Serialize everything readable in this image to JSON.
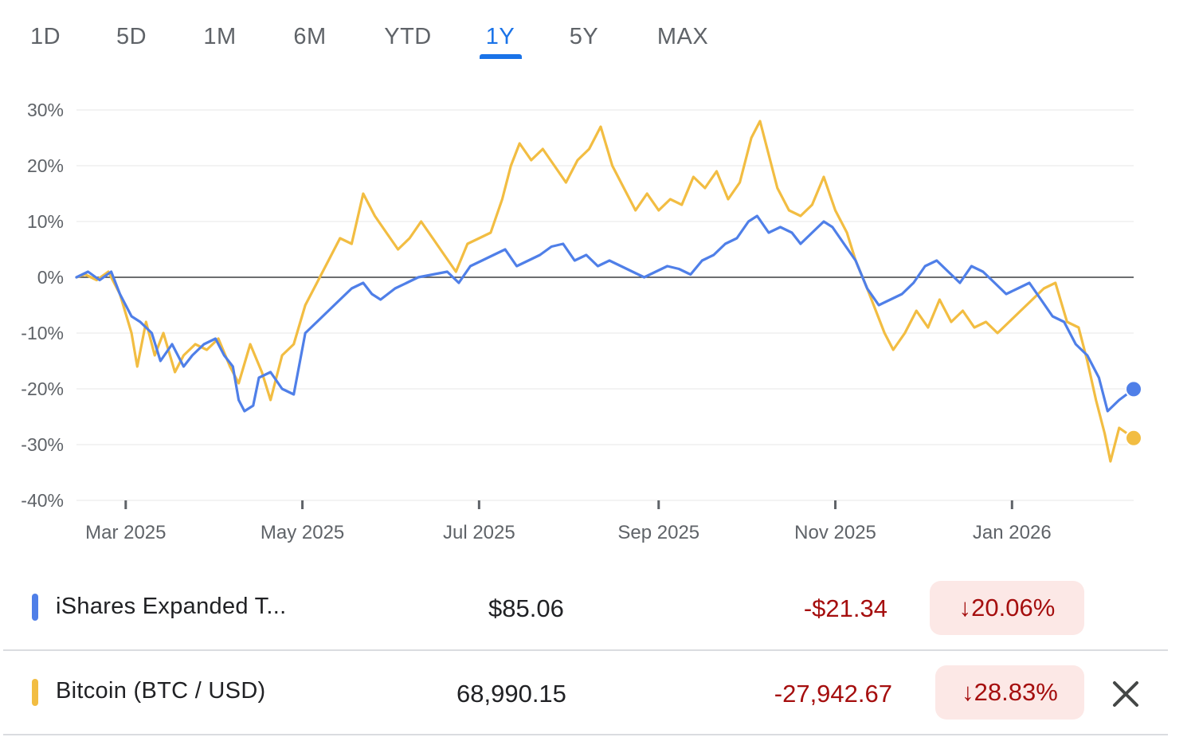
{
  "range_tabs": {
    "items": [
      "1D",
      "5D",
      "1M",
      "6M",
      "YTD",
      "1Y",
      "5Y",
      "MAX"
    ],
    "selected": "1Y"
  },
  "colors": {
    "series_blue": "#4f7fe8",
    "series_gold": "#f2bd42",
    "accent": "#1a73e8",
    "negative": "#a50e0e",
    "negative_bg": "#fce8e6"
  },
  "chart_data": {
    "type": "line",
    "title": "",
    "xlabel": "",
    "ylabel": "",
    "y_unit": "%",
    "ylim": [
      -40,
      30
    ],
    "yticks": [
      "30%",
      "20%",
      "10%",
      "0%",
      "-10%",
      "-20%",
      "-30%",
      "-40%"
    ],
    "xlim": [
      "2025-02-12",
      "2026-02-12"
    ],
    "xticks": [
      {
        "label": "Mar 2025",
        "date": "2025-03-01"
      },
      {
        "label": "May 2025",
        "date": "2025-05-01"
      },
      {
        "label": "Jul 2025",
        "date": "2025-07-01"
      },
      {
        "label": "Sep 2025",
        "date": "2025-09-01"
      },
      {
        "label": "Nov 2025",
        "date": "2025-11-01"
      },
      {
        "label": "Jan 2026",
        "date": "2026-01-01"
      }
    ],
    "baseline": 0,
    "grid": true,
    "series": [
      {
        "name": "iShares Expanded T...",
        "color_key": "series_blue",
        "points": [
          [
            "2025-02-12",
            0
          ],
          [
            "2025-02-16",
            1
          ],
          [
            "2025-02-20",
            -0.5
          ],
          [
            "2025-02-24",
            1
          ],
          [
            "2025-02-27",
            -3
          ],
          [
            "2025-03-03",
            -7
          ],
          [
            "2025-03-06",
            -8
          ],
          [
            "2025-03-10",
            -10
          ],
          [
            "2025-03-13",
            -15
          ],
          [
            "2025-03-17",
            -12
          ],
          [
            "2025-03-21",
            -16
          ],
          [
            "2025-03-24",
            -14
          ],
          [
            "2025-03-28",
            -12
          ],
          [
            "2025-04-01",
            -11
          ],
          [
            "2025-04-04",
            -14
          ],
          [
            "2025-04-07",
            -16
          ],
          [
            "2025-04-09",
            -22
          ],
          [
            "2025-04-11",
            -24
          ],
          [
            "2025-04-14",
            -23
          ],
          [
            "2025-04-16",
            -18
          ],
          [
            "2025-04-20",
            -17
          ],
          [
            "2025-04-24",
            -20
          ],
          [
            "2025-04-28",
            -21
          ],
          [
            "2025-05-02",
            -10
          ],
          [
            "2025-05-06",
            -8
          ],
          [
            "2025-05-10",
            -6
          ],
          [
            "2025-05-14",
            -4
          ],
          [
            "2025-05-18",
            -2
          ],
          [
            "2025-05-22",
            -1
          ],
          [
            "2025-05-25",
            -3
          ],
          [
            "2025-05-28",
            -4
          ],
          [
            "2025-06-02",
            -2
          ],
          [
            "2025-06-06",
            -1
          ],
          [
            "2025-06-10",
            0
          ],
          [
            "2025-06-15",
            0.5
          ],
          [
            "2025-06-20",
            1
          ],
          [
            "2025-06-24",
            -1
          ],
          [
            "2025-06-28",
            2
          ],
          [
            "2025-07-02",
            3
          ],
          [
            "2025-07-06",
            4
          ],
          [
            "2025-07-10",
            5
          ],
          [
            "2025-07-14",
            2
          ],
          [
            "2025-07-18",
            3
          ],
          [
            "2025-07-22",
            4
          ],
          [
            "2025-07-26",
            5.5
          ],
          [
            "2025-07-30",
            6
          ],
          [
            "2025-08-03",
            3
          ],
          [
            "2025-08-07",
            4
          ],
          [
            "2025-08-11",
            2
          ],
          [
            "2025-08-15",
            3
          ],
          [
            "2025-08-19",
            2
          ],
          [
            "2025-08-23",
            1
          ],
          [
            "2025-08-27",
            0
          ],
          [
            "2025-08-31",
            1
          ],
          [
            "2025-09-04",
            2
          ],
          [
            "2025-09-08",
            1.5
          ],
          [
            "2025-09-12",
            0.5
          ],
          [
            "2025-09-16",
            3
          ],
          [
            "2025-09-20",
            4
          ],
          [
            "2025-09-24",
            6
          ],
          [
            "2025-09-28",
            7
          ],
          [
            "2025-10-02",
            10
          ],
          [
            "2025-10-05",
            11
          ],
          [
            "2025-10-09",
            8
          ],
          [
            "2025-10-13",
            9
          ],
          [
            "2025-10-17",
            8
          ],
          [
            "2025-10-20",
            6
          ],
          [
            "2025-10-24",
            8
          ],
          [
            "2025-10-28",
            10
          ],
          [
            "2025-10-31",
            9
          ],
          [
            "2025-11-04",
            6
          ],
          [
            "2025-11-08",
            3
          ],
          [
            "2025-11-12",
            -2
          ],
          [
            "2025-11-16",
            -5
          ],
          [
            "2025-11-20",
            -4
          ],
          [
            "2025-11-24",
            -3
          ],
          [
            "2025-11-28",
            -1
          ],
          [
            "2025-12-02",
            2
          ],
          [
            "2025-12-06",
            3
          ],
          [
            "2025-12-10",
            1
          ],
          [
            "2025-12-14",
            -1
          ],
          [
            "2025-12-18",
            2
          ],
          [
            "2025-12-22",
            1
          ],
          [
            "2025-12-26",
            -1
          ],
          [
            "2025-12-30",
            -3
          ],
          [
            "2026-01-03",
            -2
          ],
          [
            "2026-01-07",
            -1
          ],
          [
            "2026-01-11",
            -4
          ],
          [
            "2026-01-15",
            -7
          ],
          [
            "2026-01-19",
            -8
          ],
          [
            "2026-01-23",
            -12
          ],
          [
            "2026-01-27",
            -14
          ],
          [
            "2026-01-31",
            -18
          ],
          [
            "2026-02-03",
            -24
          ],
          [
            "2026-02-07",
            -22
          ],
          [
            "2026-02-12",
            -20.06
          ]
        ]
      },
      {
        "name": "Bitcoin (BTC / USD)",
        "color_key": "series_gold",
        "points": [
          [
            "2025-02-12",
            0
          ],
          [
            "2025-02-15",
            0.5
          ],
          [
            "2025-02-19",
            -0.5
          ],
          [
            "2025-02-23",
            1
          ],
          [
            "2025-02-27",
            -3
          ],
          [
            "2025-03-03",
            -10
          ],
          [
            "2025-03-05",
            -16
          ],
          [
            "2025-03-08",
            -8
          ],
          [
            "2025-03-11",
            -14
          ],
          [
            "2025-03-14",
            -10
          ],
          [
            "2025-03-18",
            -17
          ],
          [
            "2025-03-21",
            -14
          ],
          [
            "2025-03-25",
            -12
          ],
          [
            "2025-03-29",
            -13
          ],
          [
            "2025-04-02",
            -11
          ],
          [
            "2025-04-06",
            -16
          ],
          [
            "2025-04-09",
            -19
          ],
          [
            "2025-04-13",
            -12
          ],
          [
            "2025-04-17",
            -17
          ],
          [
            "2025-04-20",
            -22
          ],
          [
            "2025-04-24",
            -14
          ],
          [
            "2025-04-28",
            -12
          ],
          [
            "2025-05-02",
            -5
          ],
          [
            "2025-05-06",
            -1
          ],
          [
            "2025-05-10",
            3
          ],
          [
            "2025-05-14",
            7
          ],
          [
            "2025-05-18",
            6
          ],
          [
            "2025-05-22",
            15
          ],
          [
            "2025-05-26",
            11
          ],
          [
            "2025-05-30",
            8
          ],
          [
            "2025-06-03",
            5
          ],
          [
            "2025-06-07",
            7
          ],
          [
            "2025-06-11",
            10
          ],
          [
            "2025-06-15",
            7
          ],
          [
            "2025-06-19",
            4
          ],
          [
            "2025-06-23",
            1
          ],
          [
            "2025-06-27",
            6
          ],
          [
            "2025-07-01",
            7
          ],
          [
            "2025-07-05",
            8
          ],
          [
            "2025-07-09",
            14
          ],
          [
            "2025-07-12",
            20
          ],
          [
            "2025-07-15",
            24
          ],
          [
            "2025-07-19",
            21
          ],
          [
            "2025-07-23",
            23
          ],
          [
            "2025-07-27",
            20
          ],
          [
            "2025-07-31",
            17
          ],
          [
            "2025-08-04",
            21
          ],
          [
            "2025-08-08",
            23
          ],
          [
            "2025-08-12",
            27
          ],
          [
            "2025-08-16",
            20
          ],
          [
            "2025-08-20",
            16
          ],
          [
            "2025-08-24",
            12
          ],
          [
            "2025-08-28",
            15
          ],
          [
            "2025-09-01",
            12
          ],
          [
            "2025-09-05",
            14
          ],
          [
            "2025-09-09",
            13
          ],
          [
            "2025-09-13",
            18
          ],
          [
            "2025-09-17",
            16
          ],
          [
            "2025-09-21",
            19
          ],
          [
            "2025-09-25",
            14
          ],
          [
            "2025-09-29",
            17
          ],
          [
            "2025-10-03",
            25
          ],
          [
            "2025-10-06",
            28
          ],
          [
            "2025-10-09",
            22
          ],
          [
            "2025-10-12",
            16
          ],
          [
            "2025-10-16",
            12
          ],
          [
            "2025-10-20",
            11
          ],
          [
            "2025-10-24",
            13
          ],
          [
            "2025-10-28",
            18
          ],
          [
            "2025-11-01",
            12
          ],
          [
            "2025-11-05",
            8
          ],
          [
            "2025-11-08",
            3
          ],
          [
            "2025-11-12",
            -2
          ],
          [
            "2025-11-15",
            -6
          ],
          [
            "2025-11-18",
            -10
          ],
          [
            "2025-11-21",
            -13
          ],
          [
            "2025-11-25",
            -10
          ],
          [
            "2025-11-29",
            -6
          ],
          [
            "2025-12-03",
            -9
          ],
          [
            "2025-12-07",
            -4
          ],
          [
            "2025-12-11",
            -8
          ],
          [
            "2025-12-15",
            -6
          ],
          [
            "2025-12-19",
            -9
          ],
          [
            "2025-12-23",
            -8
          ],
          [
            "2025-12-27",
            -10
          ],
          [
            "2025-12-31",
            -8
          ],
          [
            "2026-01-04",
            -6
          ],
          [
            "2026-01-08",
            -4
          ],
          [
            "2026-01-12",
            -2
          ],
          [
            "2026-01-16",
            -1
          ],
          [
            "2026-01-20",
            -8
          ],
          [
            "2026-01-24",
            -9
          ],
          [
            "2026-01-27",
            -15
          ],
          [
            "2026-01-30",
            -22
          ],
          [
            "2026-02-02",
            -28
          ],
          [
            "2026-02-04",
            -33
          ],
          [
            "2026-02-07",
            -27
          ],
          [
            "2026-02-12",
            -28.83
          ]
        ]
      }
    ]
  },
  "comparison": [
    {
      "name": "iShares Expanded T...",
      "price": "$85.06",
      "change": "-$21.34",
      "percent": "20.06%",
      "arrow": "↓",
      "color_key": "series_blue",
      "removable": false
    },
    {
      "name": "Bitcoin (BTC / USD)",
      "price": "68,990.15",
      "change": "-27,942.67",
      "percent": "28.83%",
      "arrow": "↓",
      "color_key": "series_gold",
      "removable": true
    }
  ]
}
